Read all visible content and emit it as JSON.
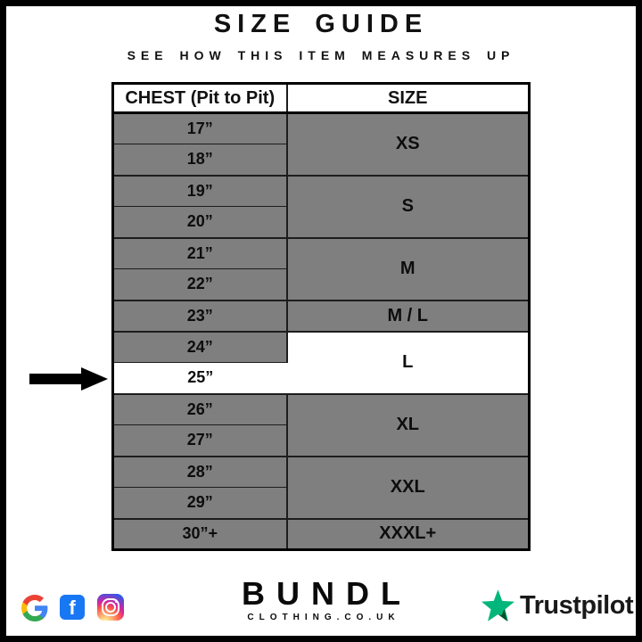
{
  "header": {
    "title": "SIZE GUIDE",
    "subtitle": "SEE HOW THIS ITEM MEASURES UP"
  },
  "table": {
    "columns": [
      "CHEST (Pit to Pit)",
      "SIZE"
    ],
    "groups": [
      {
        "size": "XS",
        "chest": [
          "17”",
          "18”"
        ]
      },
      {
        "size": "S",
        "chest": [
          "19”",
          "20”"
        ]
      },
      {
        "size": "M",
        "chest": [
          "21”",
          "22”"
        ]
      },
      {
        "size": "M / L",
        "chest": [
          "23”"
        ]
      },
      {
        "size": "L",
        "chest": [
          "24”",
          "25”"
        ],
        "highlight": true,
        "highlight_chest": "25”"
      },
      {
        "size": "XL",
        "chest": [
          "26”",
          "27”"
        ]
      },
      {
        "size": "XXL",
        "chest": [
          "28”",
          "29”"
        ]
      },
      {
        "size": "XXXL+",
        "chest": [
          "30”+"
        ]
      }
    ],
    "pointer_target_chest": "25”"
  },
  "chart_data": {
    "type": "table",
    "title": "SIZE GUIDE",
    "columns": [
      "CHEST (Pit to Pit)",
      "SIZE"
    ],
    "rows": [
      [
        "17”",
        "XS"
      ],
      [
        "18”",
        "XS"
      ],
      [
        "19”",
        "S"
      ],
      [
        "20”",
        "S"
      ],
      [
        "21”",
        "M"
      ],
      [
        "22”",
        "M"
      ],
      [
        "23”",
        "M / L"
      ],
      [
        "24”",
        "L"
      ],
      [
        "25”",
        "L"
      ],
      [
        "26”",
        "XL"
      ],
      [
        "27”",
        "XL"
      ],
      [
        "28”",
        "XXL"
      ],
      [
        "29”",
        "XXL"
      ],
      [
        "30”+",
        "XXXL+"
      ]
    ],
    "highlighted_row": [
      "25”",
      "L"
    ]
  },
  "footer": {
    "brand": "BUNDL",
    "domain": "CLOTHING.CO.UK",
    "trustpilot_label": "Trustpilot",
    "social_icons": [
      "google",
      "facebook",
      "instagram"
    ],
    "facebook_glyph": "f"
  },
  "colors": {
    "row_gray": "#7f7f7f",
    "highlight_white": "#ffffff",
    "border_black": "#000000",
    "trustpilot_green": "#00B67A",
    "trustpilot_dark_green": "#005128",
    "facebook_blue": "#1877F2",
    "google_blue": "#4285F4",
    "google_green": "#34A853",
    "google_yellow": "#FBBC05",
    "google_red": "#EA4335"
  }
}
